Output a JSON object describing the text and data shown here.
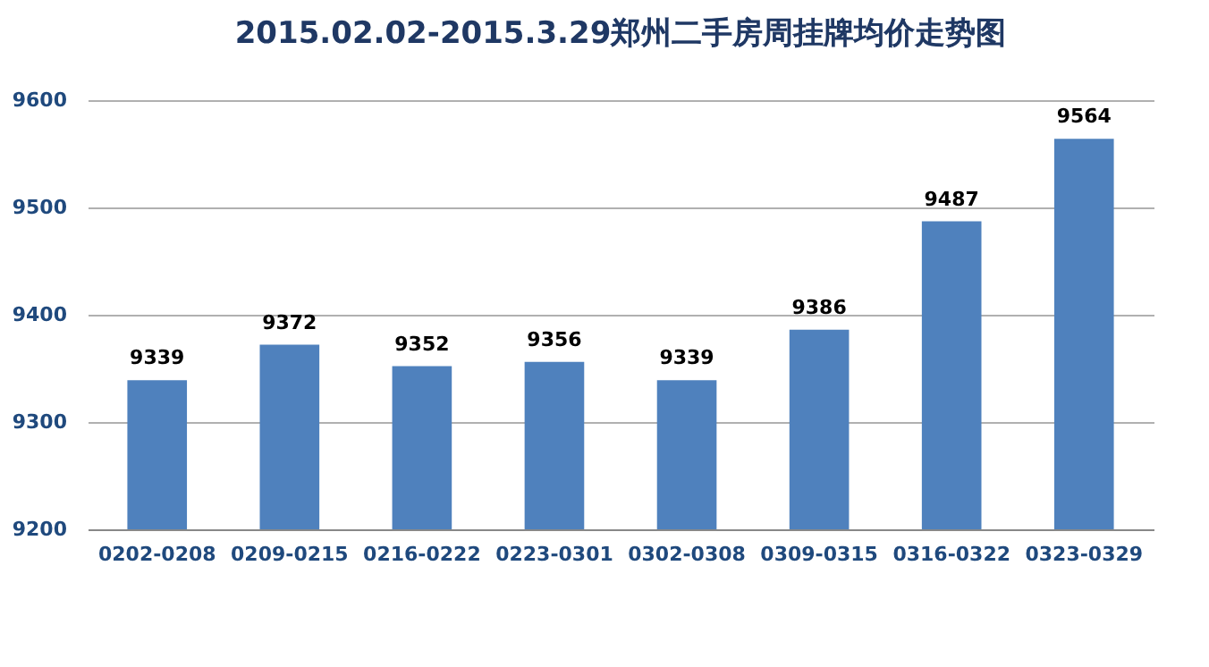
{
  "chart_data": {
    "type": "bar",
    "title": "2015.02.02-2015.3.29郑州二手房周挂牌均价走势图",
    "categories": [
      "0202-0208",
      "0209-0215",
      "0216-0222",
      "0223-0301",
      "0302-0308",
      "0309-0315",
      "0316-0322",
      "0323-0329"
    ],
    "values": [
      9339,
      9372,
      9352,
      9356,
      9339,
      9386,
      9487,
      9564
    ],
    "color": "#4f81bd",
    "ylim": [
      9200,
      9600
    ],
    "yticks": [
      9200,
      9300,
      9400,
      9500,
      9600
    ],
    "grid": "y",
    "data_labels": true
  }
}
